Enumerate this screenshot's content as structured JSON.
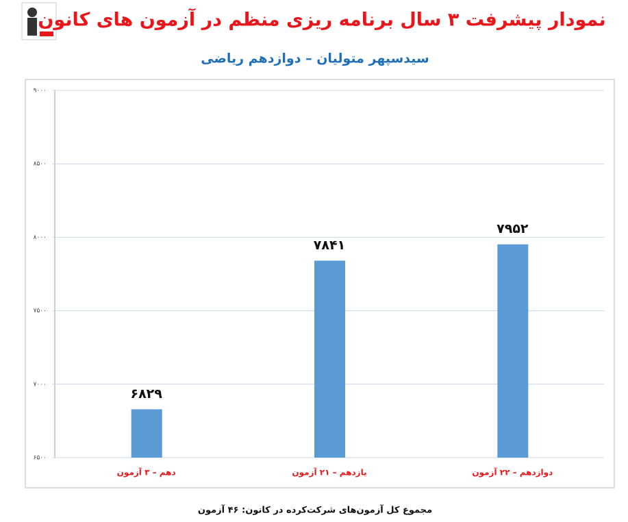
{
  "chart_data": {
    "type": "bar",
    "title": "نمودار پیشرفت ۳ سال برنامه ریزی منظم در آزمون های کانون",
    "subtitle": "سیدسپهر متولیان – دوازدهم ریاضی",
    "categories": [
      "دهم – ۳ آزمون",
      "یازدهم – ۲۱ آزمون",
      "دوازدهم – ۲۲ آزمون"
    ],
    "values": [
      6829,
      7841,
      7952
    ],
    "value_labels": [
      "۶۸۲۹",
      "۷۸۴۱",
      "۷۹۵۲"
    ],
    "color": "#5b9bd5",
    "ylim": [
      6500,
      9000
    ],
    "yticks": [
      {
        "value": 6500,
        "label": "۶۵۰۰"
      },
      {
        "value": 7000,
        "label": "۷۰۰۰"
      },
      {
        "value": 7500,
        "label": "۷۵۰۰"
      },
      {
        "value": 8000,
        "label": "۸۰۰۰"
      },
      {
        "value": 8500,
        "label": "۸۵۰۰"
      },
      {
        "value": 9000,
        "label": "۹۰۰۰"
      }
    ],
    "grid": true,
    "footnote": "مجموع کل آزمون‌های شرکت‌کرده در کانون: ۴۶ آزمون"
  }
}
